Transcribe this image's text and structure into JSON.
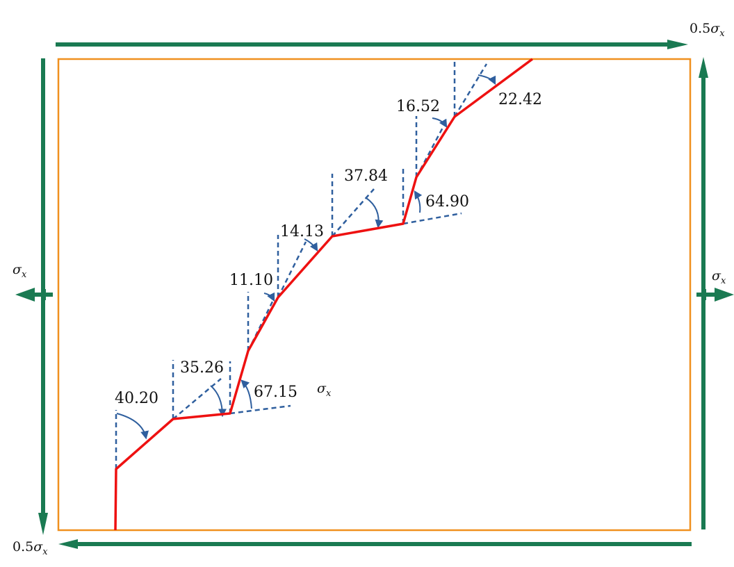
{
  "colors": {
    "plate_border": "#f0901e",
    "load_arrow": "#1a7a52",
    "crack_path": "#ee1111",
    "reference_line": "#2f5f9e",
    "angle_arrow": "#2f5f9e"
  },
  "loads": {
    "top": {
      "coef": "0.5",
      "symbol": "σ",
      "subscript": "x"
    },
    "bottom": {
      "coef": "0.5",
      "symbol": "σ",
      "subscript": "x"
    },
    "left": {
      "coef": "",
      "symbol": "σ",
      "subscript": "x"
    },
    "right": {
      "coef": "",
      "symbol": "σ",
      "subscript": "x"
    },
    "interior": {
      "coef": "",
      "symbol": "σ",
      "subscript": "x"
    }
  },
  "angles": [
    "40.20",
    "35.26",
    "67.15",
    "11.10",
    "14.13",
    "37.84",
    "64.90",
    "16.52",
    "22.42"
  ]
}
